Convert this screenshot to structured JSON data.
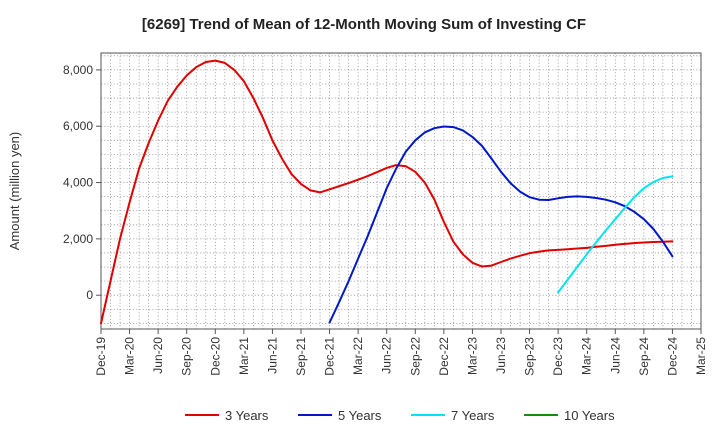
{
  "chart_data": {
    "type": "line",
    "title": "[6269]  Trend of Mean of 12-Month Moving Sum of Investing CF",
    "xlabel": "",
    "ylabel": "Amount (million yen)",
    "x_ticks": [
      "Dec-19",
      "Mar-20",
      "Jun-20",
      "Sep-20",
      "Dec-20",
      "Mar-21",
      "Jun-21",
      "Sep-21",
      "Dec-21",
      "Mar-22",
      "Jun-22",
      "Sep-22",
      "Dec-22",
      "Mar-23",
      "Jun-23",
      "Sep-23",
      "Dec-23",
      "Mar-24",
      "Jun-24",
      "Sep-24",
      "Dec-24",
      "Mar-25"
    ],
    "x_range": [
      "2019-12",
      "2025-03"
    ],
    "ylim": [
      -1200,
      8600
    ],
    "y_ticks": [
      0,
      2000,
      4000,
      6000,
      8000
    ],
    "y_tick_labels": [
      "0",
      "2,000",
      "4,000",
      "6,000",
      "8,000"
    ],
    "grid": true,
    "legend_position": "bottom",
    "series": [
      {
        "name": "3 Years",
        "color": "#e00000",
        "points": [
          [
            "2019-12",
            -1000
          ],
          [
            "2020-01",
            500
          ],
          [
            "2020-02",
            2000
          ],
          [
            "2020-03",
            3300
          ],
          [
            "2020-04",
            4500
          ],
          [
            "2020-05",
            5400
          ],
          [
            "2020-06",
            6200
          ],
          [
            "2020-07",
            6900
          ],
          [
            "2020-08",
            7400
          ],
          [
            "2020-09",
            7800
          ],
          [
            "2020-10",
            8100
          ],
          [
            "2020-11",
            8280
          ],
          [
            "2020-12",
            8330
          ],
          [
            "2021-01",
            8250
          ],
          [
            "2021-02",
            8000
          ],
          [
            "2021-03",
            7600
          ],
          [
            "2021-04",
            7000
          ],
          [
            "2021-05",
            6300
          ],
          [
            "2021-06",
            5500
          ],
          [
            "2021-07",
            4850
          ],
          [
            "2021-08",
            4300
          ],
          [
            "2021-09",
            3950
          ],
          [
            "2021-10",
            3720
          ],
          [
            "2021-11",
            3650
          ],
          [
            "2021-12",
            3760
          ],
          [
            "2022-01",
            3870
          ],
          [
            "2022-02",
            3980
          ],
          [
            "2022-03",
            4100
          ],
          [
            "2022-04",
            4230
          ],
          [
            "2022-05",
            4370
          ],
          [
            "2022-06",
            4520
          ],
          [
            "2022-07",
            4620
          ],
          [
            "2022-08",
            4580
          ],
          [
            "2022-09",
            4380
          ],
          [
            "2022-10",
            4000
          ],
          [
            "2022-11",
            3400
          ],
          [
            "2022-12",
            2600
          ],
          [
            "2023-01",
            1900
          ],
          [
            "2023-02",
            1450
          ],
          [
            "2023-03",
            1150
          ],
          [
            "2023-04",
            1020
          ],
          [
            "2023-05",
            1050
          ],
          [
            "2023-06",
            1180
          ],
          [
            "2023-07",
            1300
          ],
          [
            "2023-08",
            1400
          ],
          [
            "2023-09",
            1490
          ],
          [
            "2023-10",
            1550
          ],
          [
            "2023-11",
            1590
          ],
          [
            "2023-12",
            1610
          ],
          [
            "2024-01",
            1630
          ],
          [
            "2024-02",
            1660
          ],
          [
            "2024-03",
            1680
          ],
          [
            "2024-04",
            1720
          ],
          [
            "2024-05",
            1750
          ],
          [
            "2024-06",
            1790
          ],
          [
            "2024-07",
            1820
          ],
          [
            "2024-08",
            1850
          ],
          [
            "2024-09",
            1870
          ],
          [
            "2024-10",
            1890
          ],
          [
            "2024-11",
            1900
          ],
          [
            "2024-12",
            1910
          ]
        ]
      },
      {
        "name": "5 Years",
        "color": "#0018c8",
        "points": [
          [
            "2021-12",
            -970
          ],
          [
            "2022-01",
            -250
          ],
          [
            "2022-02",
            500
          ],
          [
            "2022-03",
            1300
          ],
          [
            "2022-04",
            2100
          ],
          [
            "2022-05",
            2950
          ],
          [
            "2022-06",
            3800
          ],
          [
            "2022-07",
            4500
          ],
          [
            "2022-08",
            5100
          ],
          [
            "2022-09",
            5500
          ],
          [
            "2022-10",
            5780
          ],
          [
            "2022-11",
            5930
          ],
          [
            "2022-12",
            5990
          ],
          [
            "2023-01",
            5970
          ],
          [
            "2023-02",
            5850
          ],
          [
            "2023-03",
            5620
          ],
          [
            "2023-04",
            5300
          ],
          [
            "2023-05",
            4850
          ],
          [
            "2023-06",
            4380
          ],
          [
            "2023-07",
            3980
          ],
          [
            "2023-08",
            3680
          ],
          [
            "2023-09",
            3480
          ],
          [
            "2023-10",
            3390
          ],
          [
            "2023-11",
            3380
          ],
          [
            "2023-12",
            3440
          ],
          [
            "2024-01",
            3490
          ],
          [
            "2024-02",
            3510
          ],
          [
            "2024-03",
            3490
          ],
          [
            "2024-04",
            3450
          ],
          [
            "2024-05",
            3390
          ],
          [
            "2024-06",
            3300
          ],
          [
            "2024-07",
            3160
          ],
          [
            "2024-08",
            2960
          ],
          [
            "2024-09",
            2700
          ],
          [
            "2024-10",
            2350
          ],
          [
            "2024-11",
            1900
          ],
          [
            "2024-12",
            1380
          ]
        ]
      },
      {
        "name": "7 Years",
        "color": "#00e5f0",
        "points": [
          [
            "2023-12",
            100
          ],
          [
            "2024-01",
            550
          ],
          [
            "2024-02",
            1000
          ],
          [
            "2024-03",
            1450
          ],
          [
            "2024-04",
            1880
          ],
          [
            "2024-05",
            2300
          ],
          [
            "2024-06",
            2700
          ],
          [
            "2024-07",
            3100
          ],
          [
            "2024-08",
            3480
          ],
          [
            "2024-09",
            3800
          ],
          [
            "2024-10",
            4020
          ],
          [
            "2024-11",
            4160
          ],
          [
            "2024-12",
            4220
          ]
        ]
      },
      {
        "name": "10 Years",
        "color": "#148c14",
        "points": []
      }
    ]
  }
}
